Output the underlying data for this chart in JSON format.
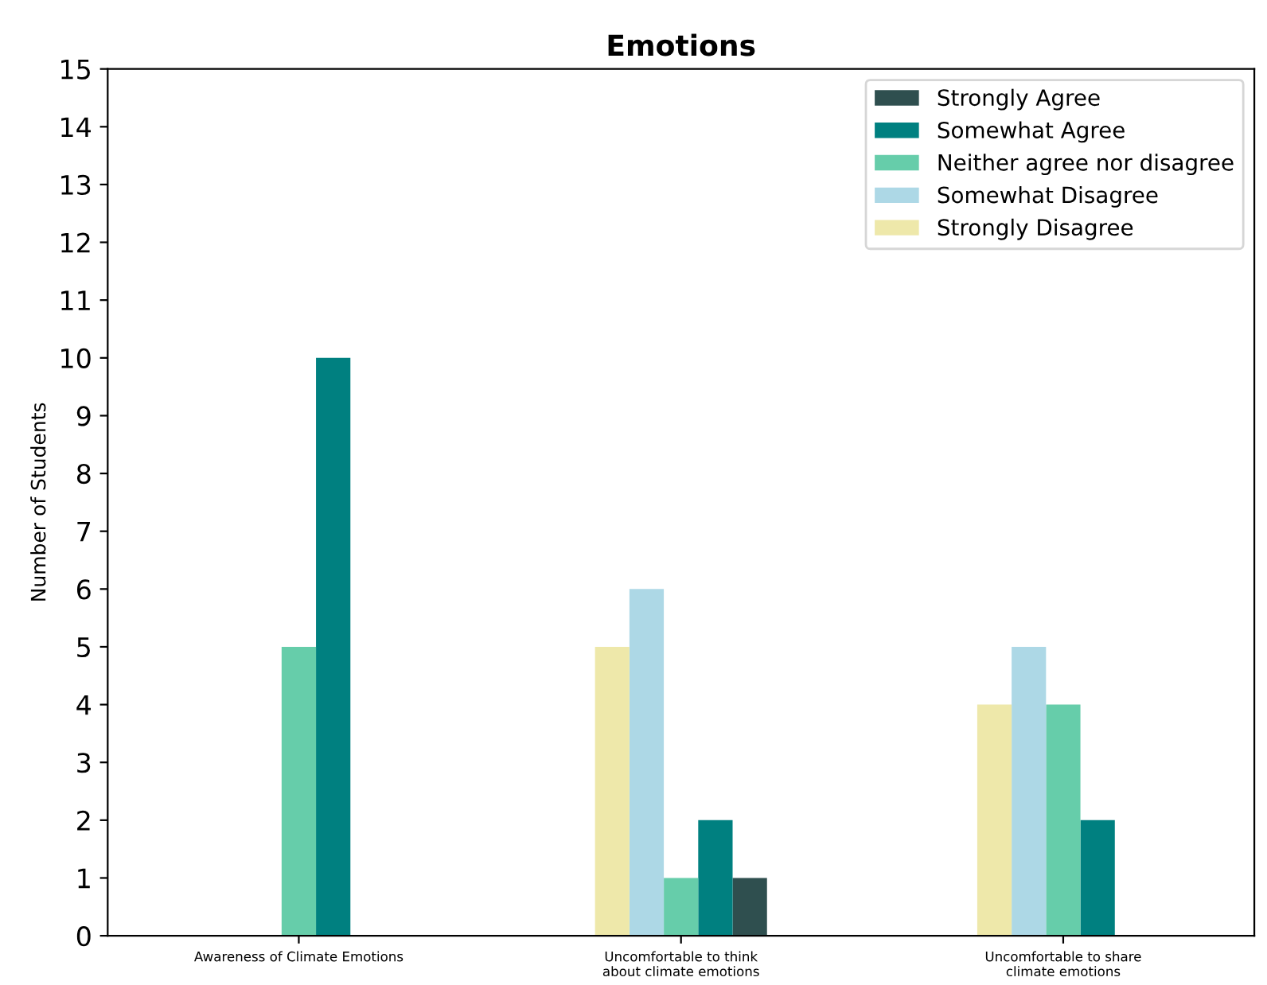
{
  "chart_data": {
    "type": "bar",
    "title": "Emotions",
    "ylabel": "Number of Students",
    "categories": [
      "Awareness of Climate Emotions",
      "Uncomfortable to think\nabout climate emotions",
      "Uncomfortable to share\nclimate emotions"
    ],
    "series": [
      {
        "name": "Strongly Agree",
        "color": "#2f4f4f",
        "values": [
          0,
          1,
          0
        ]
      },
      {
        "name": "Somewhat Agree",
        "color": "#008080",
        "values": [
          10,
          2,
          2
        ]
      },
      {
        "name": "Neither agree nor disagree",
        "color": "#66cdaa",
        "values": [
          5,
          1,
          4
        ]
      },
      {
        "name": "Somewhat Disagree",
        "color": "#add8e6",
        "values": [
          0,
          6,
          5
        ]
      },
      {
        "name": "Strongly Disagree",
        "color": "#eee8aa",
        "values": [
          0,
          5,
          4
        ]
      }
    ],
    "ylim": [
      0,
      15
    ],
    "yticks": [
      0,
      1,
      2,
      3,
      4,
      5,
      6,
      7,
      8,
      9,
      10,
      11,
      12,
      13,
      14,
      15
    ],
    "legend": "top right",
    "grid": false
  }
}
